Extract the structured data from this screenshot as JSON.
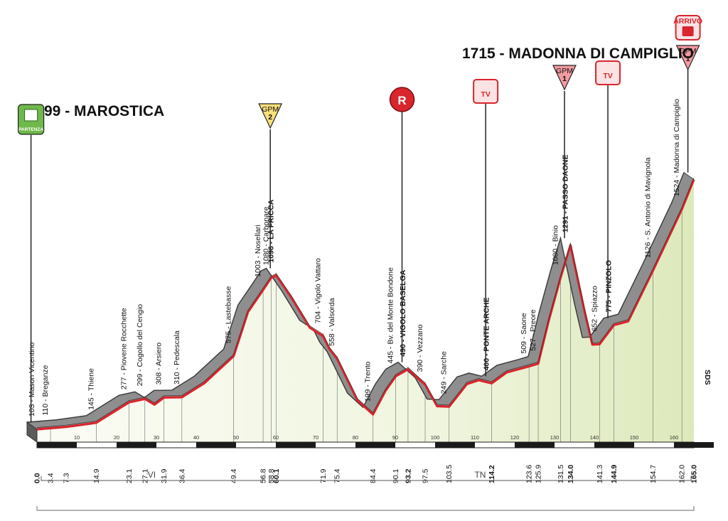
{
  "chart_data": {
    "type": "area",
    "title_start": "99 - MAROSTICA",
    "title_finish": "1715 - MADONNA DI CAMPIGLIO",
    "x_unit": "km",
    "xlim": [
      0,
      165
    ],
    "axis_ticks": [
      10,
      20,
      30,
      40,
      50,
      60,
      70,
      80,
      90,
      100,
      110,
      120,
      130,
      140,
      150,
      160
    ],
    "profile": [
      {
        "km": 0,
        "alt": 103
      },
      {
        "km": 3.4,
        "alt": 110
      },
      {
        "km": 7.3,
        "alt": 118
      },
      {
        "km": 14.9,
        "alt": 145
      },
      {
        "km": 23.1,
        "alt": 277
      },
      {
        "km": 27.1,
        "alt": 299
      },
      {
        "km": 29.5,
        "alt": 262
      },
      {
        "km": 31.9,
        "alt": 308
      },
      {
        "km": 36.4,
        "alt": 310
      },
      {
        "km": 42,
        "alt": 400
      },
      {
        "km": 49.4,
        "alt": 575
      },
      {
        "km": 53,
        "alt": 860
      },
      {
        "km": 56.8,
        "alt": 1003
      },
      {
        "km": 58.8,
        "alt": 1080
      },
      {
        "km": 60.1,
        "alt": 1096
      },
      {
        "km": 64,
        "alt": 950
      },
      {
        "km": 68.5,
        "alt": 760
      },
      {
        "km": 71.9,
        "alt": 704
      },
      {
        "km": 73.5,
        "alt": 620
      },
      {
        "km": 75.4,
        "alt": 558
      },
      {
        "km": 80.5,
        "alt": 290
      },
      {
        "km": 84.4,
        "alt": 199
      },
      {
        "km": 87.5,
        "alt": 350
      },
      {
        "km": 90.1,
        "alt": 445
      },
      {
        "km": 93.2,
        "alt": 490
      },
      {
        "km": 97.5,
        "alt": 390
      },
      {
        "km": 100.5,
        "alt": 252
      },
      {
        "km": 103.5,
        "alt": 249
      },
      {
        "km": 108,
        "alt": 395
      },
      {
        "km": 111,
        "alt": 420
      },
      {
        "km": 114.2,
        "alt": 400
      },
      {
        "km": 118,
        "alt": 470
      },
      {
        "km": 123.6,
        "alt": 509
      },
      {
        "km": 125.9,
        "alt": 527
      },
      {
        "km": 128.5,
        "alt": 800
      },
      {
        "km": 131.5,
        "alt": 1080
      },
      {
        "km": 134.0,
        "alt": 1291
      },
      {
        "km": 137.5,
        "alt": 870
      },
      {
        "km": 139.5,
        "alt": 650
      },
      {
        "km": 141.3,
        "alt": 652
      },
      {
        "km": 144.9,
        "alt": 775
      },
      {
        "km": 148.5,
        "alt": 800
      },
      {
        "km": 154.7,
        "alt": 1126
      },
      {
        "km": 162.0,
        "alt": 1524
      },
      {
        "km": 165.0,
        "alt": 1715
      }
    ],
    "place_labels": [
      {
        "km": 0.0,
        "text": "103 - Mason Vicentino",
        "bold": false
      },
      {
        "km": 3.4,
        "text": "110 - Breganze",
        "bold": false
      },
      {
        "km": 14.9,
        "text": "145 - Thiene",
        "bold": false
      },
      {
        "km": 23.1,
        "text": "277 - Piovene Rocchette",
        "bold": false
      },
      {
        "km": 27.1,
        "text": "299 - Cogollo del Cengio",
        "bold": false
      },
      {
        "km": 31.9,
        "text": "308 - Arsiero",
        "bold": false
      },
      {
        "km": 36.4,
        "text": "310 - Pedescala",
        "bold": false
      },
      {
        "km": 49.4,
        "text": "575 - Lastebasse",
        "bold": false
      },
      {
        "km": 56.8,
        "text": "1003 - Nosellari",
        "bold": false
      },
      {
        "km": 58.8,
        "text": "1080 - Carbonare",
        "bold": false
      },
      {
        "km": 60.1,
        "text": "1096 - LA FRICCA",
        "bold": true
      },
      {
        "km": 71.9,
        "text": "704 - Vigolo Vattaro",
        "bold": false
      },
      {
        "km": 75.4,
        "text": "558 - Valsorda",
        "bold": false
      },
      {
        "km": 84.4,
        "text": "199 - Trento",
        "bold": false
      },
      {
        "km": 90.1,
        "text": "445 - Bv. del Monte Bondone",
        "bold": false
      },
      {
        "km": 93.2,
        "text": "490 - VIGOLO BASELGA",
        "bold": true
      },
      {
        "km": 97.5,
        "text": "390 - Vezzano",
        "bold": false
      },
      {
        "km": 103.5,
        "text": "249 - Sarche",
        "bold": false
      },
      {
        "km": 114.2,
        "text": "400 - PONTE ARCHE",
        "bold": true
      },
      {
        "km": 123.6,
        "text": "509 - Saone",
        "bold": false
      },
      {
        "km": 125.9,
        "text": "527 - Preore",
        "bold": false
      },
      {
        "km": 131.5,
        "text": "1080 - Binio",
        "bold": false
      },
      {
        "km": 134.0,
        "text": "1291 - PASSO DAONE",
        "bold": true
      },
      {
        "km": 141.3,
        "text": "652 - Spiazzo",
        "bold": false
      },
      {
        "km": 144.9,
        "text": "775 - PINZOLO",
        "bold": true
      },
      {
        "km": 154.7,
        "text": "1126 - S. Antonio di Mavignola",
        "bold": false
      },
      {
        "km": 162.0,
        "text": "1524 - Madonna di Campiglio",
        "bold": false
      }
    ],
    "km_labels": [
      {
        "km": 0.0,
        "text": "0.0",
        "bold": true
      },
      {
        "km": 3.4,
        "text": "3.4",
        "bold": false
      },
      {
        "km": 7.3,
        "text": "7.3",
        "bold": false
      },
      {
        "km": 14.9,
        "text": "14.9",
        "bold": false
      },
      {
        "km": 23.1,
        "text": "23.1",
        "bold": false
      },
      {
        "km": 27.1,
        "text": "27.1",
        "bold": false
      },
      {
        "km": 31.9,
        "text": "31.9",
        "bold": false
      },
      {
        "km": 36.4,
        "text": "36.4",
        "bold": false
      },
      {
        "km": 49.4,
        "text": "49.4",
        "bold": false
      },
      {
        "km": 56.8,
        "text": "56.8",
        "bold": false
      },
      {
        "km": 58.8,
        "text": "58.8",
        "bold": false
      },
      {
        "km": 60.1,
        "text": "60.1",
        "bold": true
      },
      {
        "km": 71.9,
        "text": "71.9",
        "bold": false
      },
      {
        "km": 75.4,
        "text": "75.4",
        "bold": false
      },
      {
        "km": 84.4,
        "text": "84.4",
        "bold": false
      },
      {
        "km": 90.1,
        "text": "90.1",
        "bold": false
      },
      {
        "km": 93.2,
        "text": "93.2",
        "bold": true
      },
      {
        "km": 97.5,
        "text": "97.5",
        "bold": false
      },
      {
        "km": 103.5,
        "text": "103.5",
        "bold": false
      },
      {
        "km": 114.2,
        "text": "114.2",
        "bold": true
      },
      {
        "km": 123.6,
        "text": "123.6",
        "bold": false
      },
      {
        "km": 125.9,
        "text": "125.9",
        "bold": false
      },
      {
        "km": 131.5,
        "text": "131.5",
        "bold": false
      },
      {
        "km": 134.0,
        "text": "134.0",
        "bold": true
      },
      {
        "km": 141.3,
        "text": "141.3",
        "bold": false
      },
      {
        "km": 144.9,
        "text": "144.9",
        "bold": true
      },
      {
        "km": 154.7,
        "text": "154.7",
        "bold": false
      },
      {
        "km": 162.0,
        "text": "162.0",
        "bold": false
      },
      {
        "km": 165.0,
        "text": "165.0",
        "bold": true
      }
    ],
    "markers": [
      {
        "type": "partenza",
        "km": 0,
        "label": "PARTENZA"
      },
      {
        "type": "gpm",
        "km": 60.1,
        "label": "GPM",
        "category": "2",
        "color": "#f7e07a"
      },
      {
        "type": "round",
        "km": 93.2,
        "label": "R"
      },
      {
        "type": "tv",
        "km": 114.2,
        "label": "TV"
      },
      {
        "type": "gpm",
        "km": 134.0,
        "label": "GPM",
        "category": "1",
        "color": "#f29aa0"
      },
      {
        "type": "tv",
        "km": 144.9,
        "label": "TV"
      },
      {
        "type": "gpm",
        "km": 165.0,
        "label": "GPM",
        "category": "1",
        "color": "#f29aa0"
      },
      {
        "type": "arrivo",
        "km": 165.0,
        "label": "ARRIVO"
      }
    ],
    "regions": [
      {
        "label": "VI",
        "from_km": 0,
        "to_km": 57.3
      },
      {
        "label": "TN",
        "from_km": 57.3,
        "to_km": 165
      }
    ],
    "watermark": "SDS",
    "colors": {
      "road_gray": "#8e8e8e",
      "route_red": "#d9252c",
      "fill_green": "#e4eec8",
      "accent_red": "#d9252c"
    }
  }
}
